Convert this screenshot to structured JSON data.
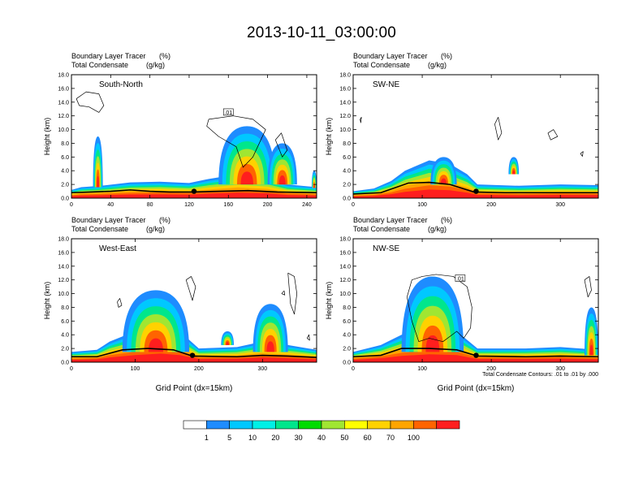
{
  "title": "2013-10-11_03:00:00",
  "colors": {
    "levels": [
      "#ffffff",
      "#1e8cff",
      "#00c8ff",
      "#00f0e6",
      "#00e68c",
      "#00dc00",
      "#a0e632",
      "#ffff00",
      "#ffd200",
      "#ffa500",
      "#ff6400",
      "#ff1e1e"
    ],
    "contour": "#000000"
  },
  "chart_data": [
    {
      "type": "heatmap",
      "name": "south-north",
      "panel_label": "South-North",
      "left_title_1": "Boundary Layer Tracer",
      "right_title_1": "(%)",
      "left_title_2": "Total Condensate",
      "right_title_2": "(g/kg)",
      "ylabel": "Height (km)",
      "xlabel": "",
      "xlim": [
        0,
        250
      ],
      "ylim": [
        0,
        18
      ],
      "xticks": [
        "0",
        "40",
        "80",
        "120",
        "160",
        "200",
        "240"
      ],
      "xtick_values": [
        0,
        40,
        80,
        120,
        160,
        200,
        240
      ],
      "yticks": [
        "0.0",
        "2.0",
        "4.0",
        "6.0",
        "8.0",
        "10.0",
        "12.0",
        "14.0",
        "16.0",
        "18.0"
      ],
      "contour_label": ".01",
      "contour_label_at": [
        160,
        12.5
      ],
      "marker_x": 125,
      "surface": [
        [
          0,
          0.8
        ],
        [
          20,
          0.9
        ],
        [
          40,
          1.0
        ],
        [
          60,
          1.2
        ],
        [
          80,
          1.0
        ],
        [
          100,
          0.9
        ],
        [
          125,
          0.9
        ],
        [
          150,
          1.0
        ],
        [
          180,
          1.1
        ],
        [
          210,
          0.9
        ],
        [
          250,
          0.8
        ]
      ],
      "bl_top": [
        [
          0,
          1.2
        ],
        [
          10,
          1.6
        ],
        [
          30,
          1.8
        ],
        [
          60,
          2.3
        ],
        [
          90,
          2.4
        ],
        [
          120,
          2.2
        ],
        [
          140,
          2.8
        ],
        [
          170,
          3.5
        ],
        [
          200,
          3.0
        ],
        [
          220,
          2.0
        ],
        [
          250,
          1.6
        ]
      ],
      "cells": [
        {
          "x": [
            22,
            32
          ],
          "y": [
            1.6,
            9.0
          ]
        },
        {
          "x": [
            150,
            208
          ],
          "y": [
            2.0,
            10.5
          ]
        },
        {
          "x": [
            200,
            230
          ],
          "y": [
            2.0,
            8.0
          ]
        },
        {
          "x": [
            245,
            250
          ],
          "y": [
            1.5,
            4.0
          ]
        }
      ],
      "contours": [
        {
          "points": [
            [
              5,
              14.5
            ],
            [
              15,
              15.5
            ],
            [
              28,
              15.2
            ],
            [
              33,
              13.5
            ],
            [
              28,
              12.5
            ],
            [
              18,
              13.3
            ],
            [
              8,
              13.5
            ],
            [
              5,
              14.5
            ]
          ]
        },
        {
          "points": [
            [
              140,
              11.5
            ],
            [
              165,
              12.0
            ],
            [
              185,
              11.5
            ],
            [
              198,
              10.0
            ],
            [
              185,
              6.0
            ],
            [
              175,
              4.5
            ],
            [
              168,
              7.5
            ],
            [
              150,
              9.0
            ],
            [
              138,
              10.5
            ],
            [
              140,
              11.5
            ]
          ]
        },
        {
          "points": [
            [
              208,
              8.5
            ],
            [
              214,
              9.5
            ],
            [
              220,
              7.0
            ],
            [
              215,
              6.0
            ],
            [
              208,
              8.5
            ]
          ]
        }
      ]
    },
    {
      "type": "heatmap",
      "name": "sw-ne",
      "panel_label": "SW-NE",
      "left_title_1": "Boundary Layer Tracer",
      "right_title_1": "(%)",
      "left_title_2": "Total Condensate",
      "right_title_2": "(g/kg)",
      "ylabel": "Height (km)",
      "xlabel": "",
      "xlim": [
        0,
        355
      ],
      "ylim": [
        0,
        18
      ],
      "xticks": [
        "0",
        "100",
        "200",
        "300"
      ],
      "xtick_values": [
        0,
        100,
        200,
        300
      ],
      "yticks": [
        "0.0",
        "2.0",
        "4.0",
        "6.0",
        "8.0",
        "10.0",
        "12.0",
        "14.0",
        "16.0",
        "18.0"
      ],
      "contour_label": "",
      "contour_label_at": [
        0,
        0
      ],
      "marker_x": 178,
      "surface": [
        [
          0,
          0.6
        ],
        [
          40,
          0.8
        ],
        [
          60,
          1.5
        ],
        [
          80,
          2.2
        ],
        [
          110,
          2.3
        ],
        [
          140,
          2.0
        ],
        [
          175,
          0.9
        ],
        [
          220,
          0.8
        ],
        [
          280,
          0.8
        ],
        [
          355,
          0.8
        ]
      ],
      "bl_top": [
        [
          0,
          1.0
        ],
        [
          30,
          1.4
        ],
        [
          55,
          2.5
        ],
        [
          75,
          4.0
        ],
        [
          110,
          5.5
        ],
        [
          140,
          5.0
        ],
        [
          165,
          3.5
        ],
        [
          180,
          2.0
        ],
        [
          240,
          1.8
        ],
        [
          300,
          2.0
        ],
        [
          355,
          1.9
        ]
      ],
      "cells": [
        {
          "x": [
            112,
            150
          ],
          "y": [
            2.0,
            6.0
          ]
        },
        {
          "x": [
            225,
            240
          ],
          "y": [
            3.5,
            6.0
          ]
        }
      ],
      "contours": [
        {
          "points": [
            [
              205,
              10.8
            ],
            [
              210,
              11.8
            ],
            [
              215,
              9.5
            ],
            [
              210,
              8.5
            ],
            [
              205,
              10.8
            ]
          ]
        },
        {
          "points": [
            [
              282,
              9.5
            ],
            [
              290,
              10.0
            ],
            [
              296,
              9.0
            ],
            [
              286,
              8.5
            ],
            [
              282,
              9.5
            ]
          ]
        },
        {
          "points": [
            [
              329,
              6.5
            ],
            [
              333,
              6.8
            ],
            [
              332,
              6.1
            ],
            [
              329,
              6.5
            ]
          ]
        },
        {
          "points": [
            [
              10,
              11.5
            ],
            [
              12,
              11.8
            ],
            [
              11,
              11.0
            ],
            [
              10,
              11.5
            ]
          ]
        }
      ]
    },
    {
      "type": "heatmap",
      "name": "west-east",
      "panel_label": "West-East",
      "left_title_1": "Boundary Layer Tracer",
      "right_title_1": "(%)",
      "left_title_2": "Total Condensate",
      "right_title_2": "(g/kg)",
      "ylabel": "Height (km)",
      "xlabel": "Grid Point (dx=15km)",
      "xlim": [
        0,
        385
      ],
      "ylim": [
        0,
        18
      ],
      "xticks": [
        "0",
        "100",
        "200",
        "300"
      ],
      "xtick_values": [
        0,
        100,
        200,
        300
      ],
      "yticks": [
        "0.0",
        "2.0",
        "4.0",
        "6.0",
        "8.0",
        "10.0",
        "12.0",
        "14.0",
        "16.0",
        "18.0"
      ],
      "contour_label": "",
      "contour_label_at": [
        0,
        0
      ],
      "marker_x": 190,
      "surface": [
        [
          0,
          0.8
        ],
        [
          40,
          0.8
        ],
        [
          80,
          1.8
        ],
        [
          120,
          2.0
        ],
        [
          160,
          1.8
        ],
        [
          190,
          0.9
        ],
        [
          260,
          0.8
        ],
        [
          300,
          1.0
        ],
        [
          340,
          0.9
        ],
        [
          385,
          0.7
        ]
      ],
      "bl_top": [
        [
          0,
          1.5
        ],
        [
          40,
          1.8
        ],
        [
          60,
          3.0
        ],
        [
          100,
          4.5
        ],
        [
          140,
          5.5
        ],
        [
          170,
          4.5
        ],
        [
          200,
          2.0
        ],
        [
          260,
          2.2
        ],
        [
          300,
          3.0
        ],
        [
          340,
          2.5
        ],
        [
          385,
          1.8
        ]
      ],
      "cells": [
        {
          "x": [
            80,
            185
          ],
          "y": [
            1.5,
            10.5
          ]
        },
        {
          "x": [
            285,
            340
          ],
          "y": [
            1.5,
            8.5
          ]
        },
        {
          "x": [
            235,
            255
          ],
          "y": [
            2.5,
            4.5
          ]
        }
      ],
      "contours": [
        {
          "points": [
            [
              180,
              12.0
            ],
            [
              188,
              12.5
            ],
            [
              195,
              11.0
            ],
            [
              190,
              9.0
            ],
            [
              185,
              10.5
            ],
            [
              180,
              12.0
            ]
          ]
        },
        {
          "points": [
            [
              72,
              8.8
            ],
            [
              76,
              9.3
            ],
            [
              79,
              8.3
            ],
            [
              74,
              8.0
            ],
            [
              72,
              8.8
            ]
          ]
        },
        {
          "points": [
            [
              340,
              13.0
            ],
            [
              350,
              12.5
            ],
            [
              354,
              10.0
            ],
            [
              350,
              7.0
            ],
            [
              344,
              8.5
            ],
            [
              340,
              13.0
            ]
          ]
        },
        {
          "points": [
            [
              330,
              10.0
            ],
            [
              334,
              10.4
            ],
            [
              335,
              9.8
            ],
            [
              330,
              10.0
            ]
          ]
        },
        {
          "points": [
            [
              370,
              3.5
            ],
            [
              373,
              4.0
            ],
            [
              374,
              3.2
            ],
            [
              370,
              3.5
            ]
          ]
        }
      ]
    },
    {
      "type": "heatmap",
      "name": "nw-se",
      "panel_label": "NW-SE",
      "left_title_1": "Boundary Layer Tracer",
      "right_title_1": "(%)",
      "left_title_2": "Total Condensate",
      "right_title_2": "(g/kg)",
      "ylabel": "Height (km)",
      "xlabel": "Grid Point (dx=15km)",
      "xlim": [
        0,
        355
      ],
      "ylim": [
        0,
        18
      ],
      "xticks": [
        "0",
        "100",
        "200",
        "300"
      ],
      "xtick_values": [
        0,
        100,
        200,
        300
      ],
      "yticks": [
        "0.0",
        "2.0",
        "4.0",
        "6.0",
        "8.0",
        "10.0",
        "12.0",
        "14.0",
        "16.0",
        "18.0"
      ],
      "contour_label": ".01",
      "contour_label_at": [
        155,
        12.2
      ],
      "marker_x": 178,
      "surface": [
        [
          0,
          0.8
        ],
        [
          40,
          1.0
        ],
        [
          70,
          2.0
        ],
        [
          110,
          2.0
        ],
        [
          150,
          1.8
        ],
        [
          180,
          0.9
        ],
        [
          250,
          0.8
        ],
        [
          300,
          0.9
        ],
        [
          355,
          0.8
        ]
      ],
      "bl_top": [
        [
          0,
          1.5
        ],
        [
          40,
          2.5
        ],
        [
          70,
          4.0
        ],
        [
          110,
          5.0
        ],
        [
          150,
          4.5
        ],
        [
          180,
          2.0
        ],
        [
          250,
          2.0
        ],
        [
          300,
          2.2
        ],
        [
          355,
          1.8
        ]
      ],
      "cells": [
        {
          "x": [
            70,
            160
          ],
          "y": [
            1.5,
            12.5
          ]
        },
        {
          "x": [
            335,
            355
          ],
          "y": [
            1.0,
            8.0
          ]
        }
      ],
      "contours": [
        {
          "points": [
            [
              78,
              9.5
            ],
            [
              85,
              12.0
            ],
            [
              100,
              12.5
            ],
            [
              120,
              12.8
            ],
            [
              145,
              12.5
            ],
            [
              165,
              11.0
            ],
            [
              172,
              8.0
            ],
            [
              170,
              5.0
            ],
            [
              160,
              3.5
            ],
            [
              150,
              4.5
            ],
            [
              130,
              3.0
            ],
            [
              110,
              3.5
            ],
            [
              95,
              3.0
            ],
            [
              85,
              6.0
            ],
            [
              78,
              9.5
            ]
          ]
        },
        {
          "points": [
            [
              335,
              12.0
            ],
            [
              342,
              12.5
            ],
            [
              345,
              10.5
            ],
            [
              340,
              9.5
            ],
            [
              335,
              12.0
            ]
          ]
        }
      ],
      "footnote": "Total Condensate Contours: .01 to .01 by .000"
    }
  ],
  "colorbar": {
    "labels": [
      "1",
      "5",
      "10",
      "20",
      "30",
      "40",
      "50",
      "60",
      "70",
      "100"
    ]
  }
}
